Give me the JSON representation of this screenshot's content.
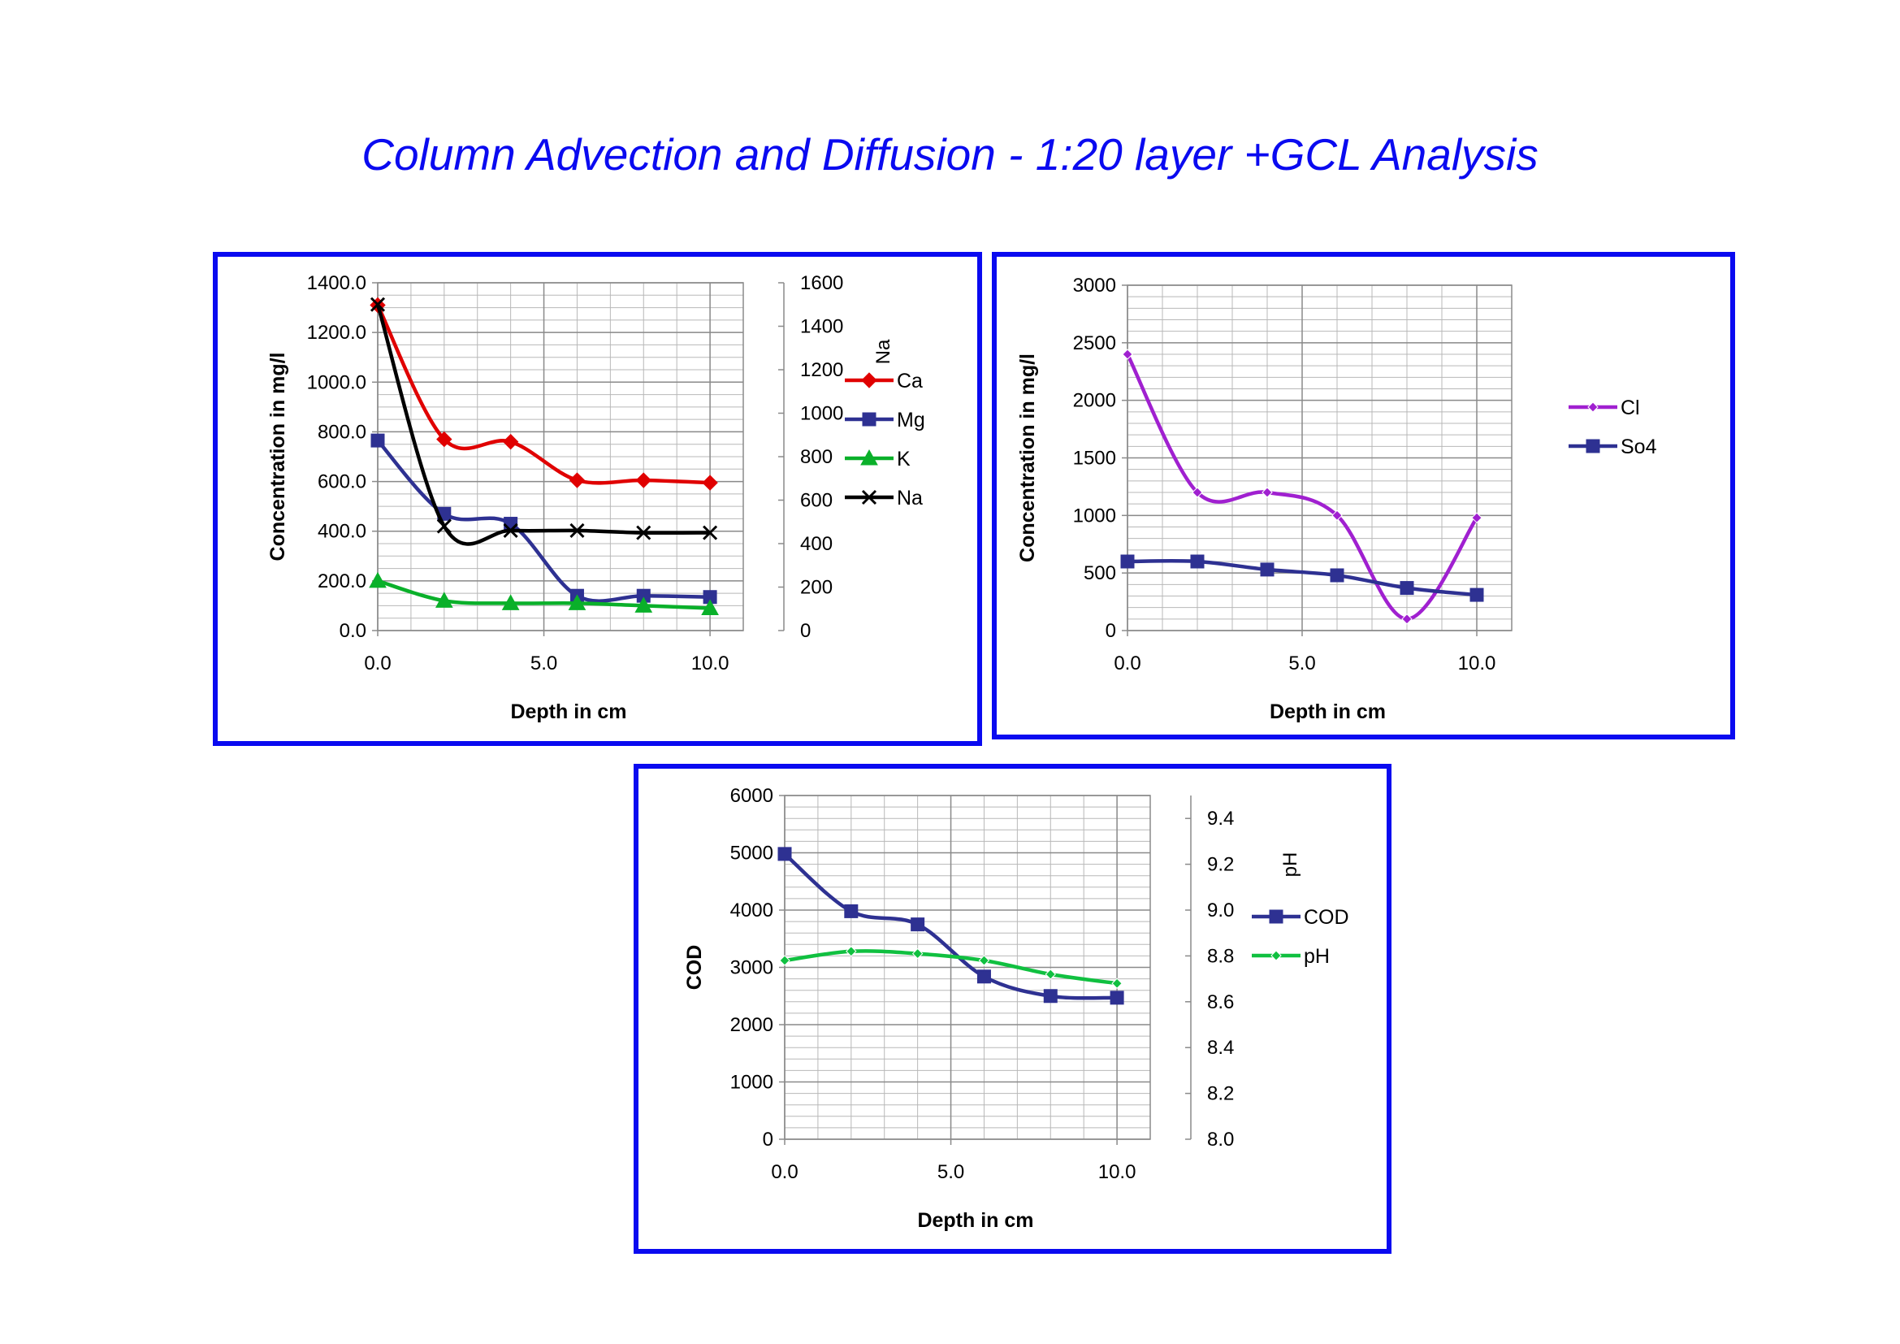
{
  "page": {
    "title": "Column Advection and Diffusion - 1:20 layer +GCL Analysis",
    "title_color": "#0a0af0",
    "frame_color": "#0a0af0"
  },
  "chart_data": [
    {
      "type": "line",
      "xlabel": "Depth in cm",
      "ylabel": "Concentration in mg/l",
      "y2label": "Na",
      "xlim": [
        0,
        11
      ],
      "ylim": [
        0,
        1400
      ],
      "y2lim": [
        0,
        1600
      ],
      "xticks": [
        "0.0",
        "5.0",
        "10.0"
      ],
      "yticks": [
        "0.0",
        "200.0",
        "400.0",
        "600.0",
        "800.0",
        "1000.0",
        "1200.0",
        "1400.0"
      ],
      "y2ticks": [
        "0",
        "200",
        "400",
        "600",
        "800",
        "1000",
        "1200",
        "1400",
        "1600"
      ],
      "grid": true,
      "legend_position": "right",
      "series": [
        {
          "name": "Ca",
          "color": "#e00000",
          "marker": "diamond",
          "axis": "left",
          "x": [
            0,
            2,
            4,
            6,
            8,
            10
          ],
          "y": [
            1310,
            770,
            760,
            605,
            605,
            595
          ]
        },
        {
          "name": "Mg",
          "color": "#2e3192",
          "marker": "square",
          "axis": "left",
          "x": [
            0,
            2,
            4,
            6,
            8,
            10
          ],
          "y": [
            765,
            470,
            430,
            140,
            140,
            135
          ]
        },
        {
          "name": "K",
          "color": "#0ab02a",
          "marker": "triangle",
          "axis": "left",
          "x": [
            0,
            2,
            4,
            6,
            8,
            10
          ],
          "y": [
            200,
            120,
            110,
            110,
            100,
            90
          ]
        },
        {
          "name": "Na",
          "color": "#000000",
          "marker": "x",
          "axis": "right",
          "x": [
            0,
            2,
            4,
            6,
            8,
            10
          ],
          "y": [
            1500,
            480,
            460,
            460,
            450,
            450
          ]
        }
      ]
    },
    {
      "type": "line",
      "xlabel": "Depth in cm",
      "ylabel": "Concentration in mg/l",
      "xlim": [
        0,
        11
      ],
      "ylim": [
        0,
        3000
      ],
      "xticks": [
        "0.0",
        "5.0",
        "10.0"
      ],
      "yticks": [
        "0",
        "500",
        "1000",
        "1500",
        "2000",
        "2500",
        "3000"
      ],
      "grid": true,
      "legend_position": "right",
      "series": [
        {
          "name": "Cl",
          "color": "#a020d0",
          "marker": "diamond",
          "axis": "left",
          "x": [
            0,
            2,
            4,
            6,
            8,
            10
          ],
          "y": [
            2400,
            1200,
            1200,
            1000,
            100,
            980
          ]
        },
        {
          "name": "So4",
          "color": "#2e3192",
          "marker": "square",
          "axis": "left",
          "x": [
            0,
            2,
            4,
            6,
            8,
            10
          ],
          "y": [
            600,
            600,
            530,
            480,
            370,
            310
          ]
        }
      ]
    },
    {
      "type": "line",
      "xlabel": "Depth in cm",
      "ylabel": "COD",
      "y2label": "pH",
      "xlim": [
        0,
        11
      ],
      "ylim": [
        0,
        6000
      ],
      "y2lim": [
        8.0,
        9.5
      ],
      "xticks": [
        "0.0",
        "5.0",
        "10.0"
      ],
      "yticks": [
        "0",
        "1000",
        "2000",
        "3000",
        "4000",
        "5000",
        "6000"
      ],
      "y2ticks": [
        "8.0",
        "8.2",
        "8.4",
        "8.6",
        "8.8",
        "9.0",
        "9.2",
        "9.4"
      ],
      "grid": true,
      "legend_position": "right",
      "series": [
        {
          "name": "COD",
          "color": "#2e3192",
          "marker": "square",
          "axis": "left",
          "x": [
            0,
            2,
            4,
            6,
            8,
            10
          ],
          "y": [
            4980,
            3980,
            3750,
            2840,
            2500,
            2470
          ]
        },
        {
          "name": "pH",
          "color": "#10c040",
          "marker": "diamond",
          "axis": "right",
          "x": [
            0,
            2,
            4,
            6,
            8,
            10
          ],
          "y": [
            8.78,
            8.82,
            8.81,
            8.78,
            8.72,
            8.68
          ]
        }
      ]
    }
  ]
}
